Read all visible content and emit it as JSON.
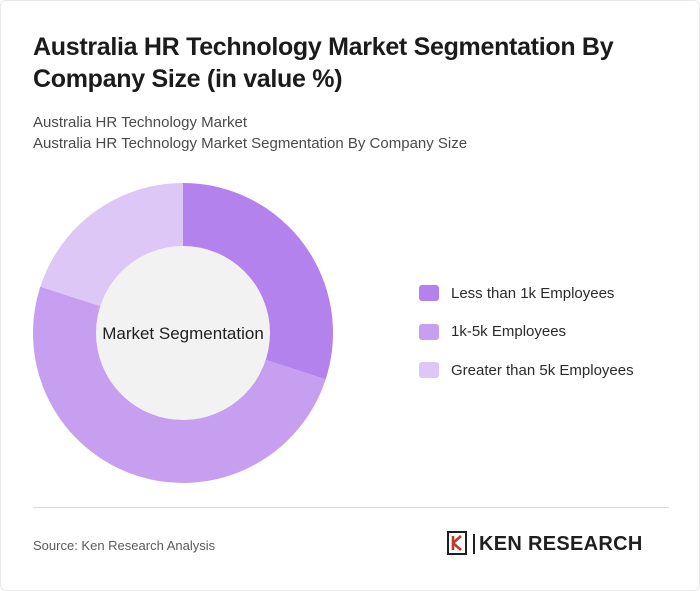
{
  "title": "Australia HR Technology Market Segmentation By Company Size (in value %)",
  "subtitle_line1": "Australia HR Technology Market",
  "subtitle_line2": "Australia HR Technology Market Segmentation By Company Size",
  "source": "Source: Ken Research Analysis",
  "logo_text": "KEN RESEARCH",
  "chart_data": {
    "type": "pie",
    "variant": "donut",
    "center_label": "Market Segmentation",
    "categories": [
      "Less than 1k Employees",
      "1k-5k Employees",
      "Greater than 5k Employees"
    ],
    "values": [
      30,
      50,
      20
    ],
    "colors": [
      "#b482ed",
      "#c69ff0",
      "#dcc7f7"
    ],
    "legend_position": "right"
  }
}
